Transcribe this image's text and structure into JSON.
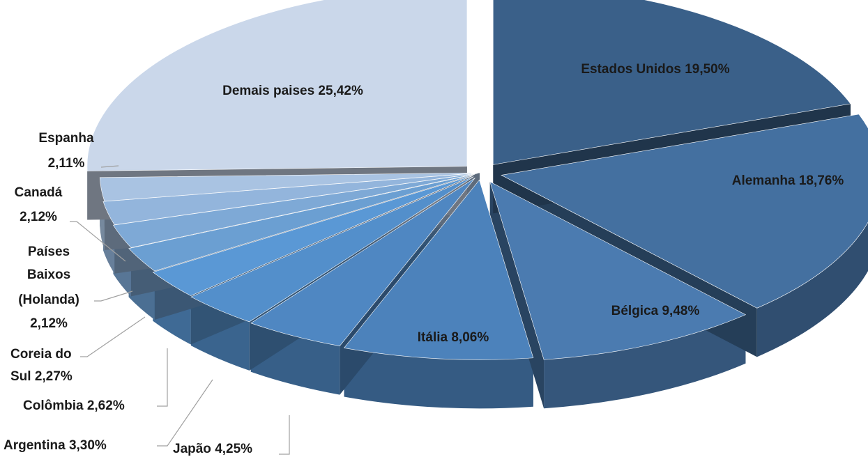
{
  "chart_data": {
    "type": "pie",
    "style": "3d-exploded",
    "slices": [
      {
        "name": "Estados Unidos",
        "value": 19.5,
        "label": "Estados Unidos 19,50%",
        "color": "#3a6089"
      },
      {
        "name": "Alemanha",
        "value": 18.76,
        "label": "Alemanha 18,76%",
        "color": "#4470a0"
      },
      {
        "name": "Bélgica",
        "value": 9.48,
        "label": "Bélgica 9,48%",
        "color": "#4b7bb0"
      },
      {
        "name": "Itália",
        "value": 8.06,
        "label": "Itália 8,06%",
        "color": "#4c82bb"
      },
      {
        "name": "Japão",
        "value": 4.25,
        "label": "Japão 4,25%",
        "color": "#4f87c2"
      },
      {
        "name": "Argentina",
        "value": 3.3,
        "label": "Argentina 3,30%",
        "color": "#538fcb"
      },
      {
        "name": "Colômbia",
        "value": 2.62,
        "label": "Colômbia 2,62%",
        "color": "#5a98d5"
      },
      {
        "name": "Coreia do Sul",
        "value": 2.27,
        "label": "Coreia do Sul 2,27%",
        "color": "#6b9fd2"
      },
      {
        "name": "Países Baixos (Holanda)",
        "value": 2.12,
        "label": "Países Baixos (Holanda) 2,12%",
        "color": "#7ea9d6"
      },
      {
        "name": "Canadá",
        "value": 2.12,
        "label": "Canadá 2,12%",
        "color": "#93b5dc"
      },
      {
        "name": "Espanha",
        "value": 2.11,
        "label": "Espanha 2,11%",
        "color": "#a9c3e2"
      },
      {
        "name": "Demais paises",
        "value": 25.42,
        "label": "Demais paises 25,42%",
        "color": "#cad7ea"
      }
    ],
    "title": "",
    "legend": "none"
  }
}
